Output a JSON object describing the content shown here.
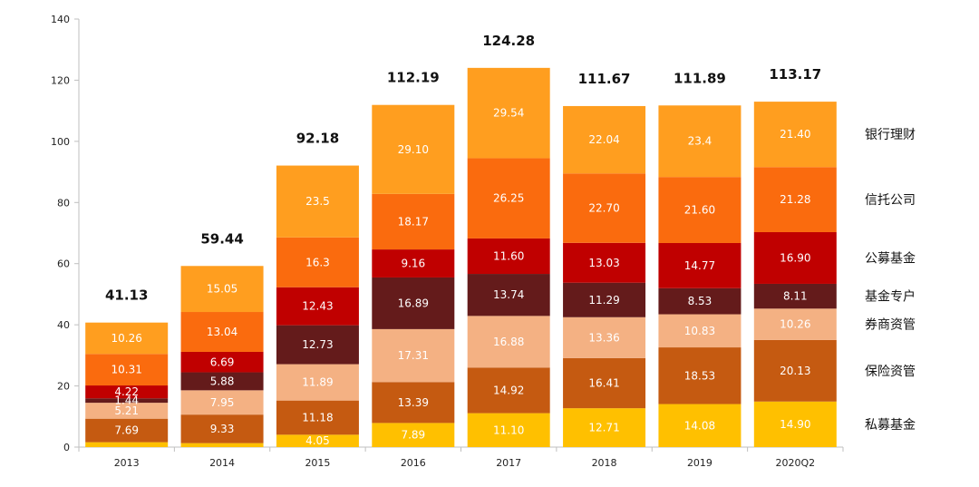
{
  "chart_data": {
    "type": "bar",
    "stacked": true,
    "categories": [
      "2013",
      "2014",
      "2015",
      "2016",
      "2017",
      "2018",
      "2019",
      "2020Q2"
    ],
    "ylim": [
      0,
      140
    ],
    "yticks": [
      0,
      20,
      40,
      60,
      80,
      100,
      120,
      140
    ],
    "totals": [
      "41.13",
      "59.44",
      "92.18",
      "112.19",
      "124.28",
      "111.67",
      "111.89",
      "113.17"
    ],
    "series": [
      {
        "name": "私募基金",
        "color": "#FFC000",
        "values": [
          1.6,
          1.3,
          4.05,
          7.89,
          11.1,
          12.71,
          14.08,
          14.9
        ],
        "labels": [
          "",
          "",
          "4.05",
          "7.89",
          "11.10",
          "12.71",
          "14.08",
          "14.90"
        ]
      },
      {
        "name": "保险资管",
        "color": "#C55A11",
        "values": [
          7.69,
          9.33,
          11.18,
          13.39,
          14.92,
          16.41,
          18.53,
          20.13
        ],
        "labels": [
          "7.69",
          "9.33",
          "11.18",
          "13.39",
          "14.92",
          "16.41",
          "18.53",
          "20.13"
        ]
      },
      {
        "name": "券商资管",
        "color": "#F4B183",
        "values": [
          5.21,
          7.95,
          11.89,
          17.31,
          16.88,
          13.36,
          10.83,
          10.26
        ],
        "labels": [
          "5.21",
          "7.95",
          "11.89",
          "17.31",
          "16.88",
          "13.36",
          "10.83",
          "10.26"
        ]
      },
      {
        "name": "基金专户",
        "color": "#641B1B",
        "values": [
          1.44,
          5.88,
          12.73,
          16.89,
          13.74,
          11.29,
          8.53,
          8.11
        ],
        "labels": [
          "1.44",
          "5.88",
          "12.73",
          "16.89",
          "13.74",
          "11.29",
          "8.53",
          "8.11"
        ]
      },
      {
        "name": "公募基金",
        "color": "#C00000",
        "values": [
          4.22,
          6.69,
          12.43,
          9.16,
          11.6,
          13.03,
          14.77,
          16.9
        ],
        "labels": [
          "4.22",
          "6.69",
          "12.43",
          "9.16",
          "11.60",
          "13.03",
          "14.77",
          "16.90"
        ]
      },
      {
        "name": "信托公司",
        "color": "#FA6B0E",
        "values": [
          10.31,
          13.04,
          16.3,
          18.17,
          26.25,
          22.7,
          21.6,
          21.28
        ],
        "labels": [
          "10.31",
          "13.04",
          "16.3",
          "18.17",
          "26.25",
          "22.70",
          "21.60",
          "21.28"
        ]
      },
      {
        "name": "银行理财",
        "color": "#FF9E1F",
        "values": [
          10.26,
          15.05,
          23.5,
          29.1,
          29.54,
          22.04,
          23.4,
          21.4
        ],
        "labels": [
          "10.26",
          "15.05",
          "23.5",
          "29.10",
          "29.54",
          "22.04",
          "23.4",
          "21.40"
        ]
      }
    ],
    "legend_position": "right"
  }
}
